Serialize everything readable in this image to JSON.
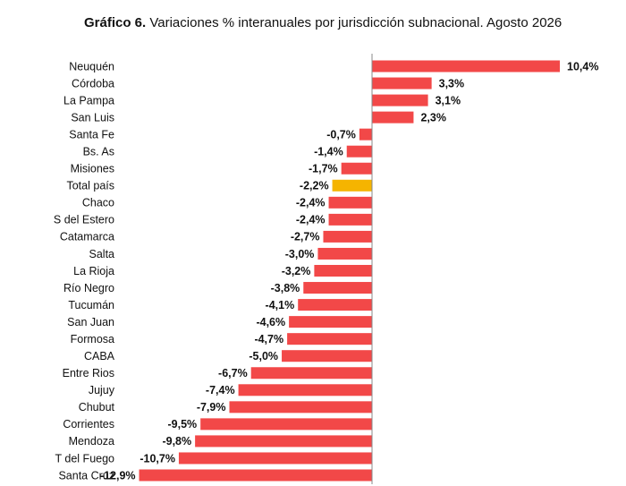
{
  "chart_data": {
    "type": "hbar",
    "title_lead": "Gráfico 6.",
    "title": "Variaciones % interanuales por jurisdicción subnacional. Agosto 2026",
    "categories": [
      "Neuquén",
      "Córdoba",
      "La Pampa",
      "San Luis",
      "Santa Fe",
      "Bs. As",
      "Misiones",
      "Total país",
      "Chaco",
      "S del Estero",
      "Catamarca",
      "Salta",
      "La Rioja",
      "Río Negro",
      "Tucumán",
      "San Juan",
      "Formosa",
      "CABA",
      "Entre Rios",
      "Jujuy",
      "Chubut",
      "Corrientes",
      "Mendoza",
      "T del Fuego",
      "Santa Cruz"
    ],
    "values": [
      10.4,
      3.3,
      3.1,
      2.3,
      -0.7,
      -1.4,
      -1.7,
      -2.2,
      -2.4,
      -2.4,
      -2.7,
      -3.0,
      -3.2,
      -3.8,
      -4.1,
      -4.6,
      -4.7,
      -5.0,
      -6.7,
      -7.4,
      -7.9,
      -9.5,
      -9.8,
      -10.7,
      -12.9
    ],
    "value_labels": [
      "10,4%",
      "3,3%",
      "3,1%",
      "2,3%",
      "-0,7%",
      "-1,4%",
      "-1,7%",
      "-2,2%",
      "-2,4%",
      "-2,4%",
      "-2,7%",
      "-3,0%",
      "-3,2%",
      "-3,8%",
      "-4,1%",
      "-4,6%",
      "-4,7%",
      "-5,0%",
      "-6,7%",
      "-7,4%",
      "-7,9%",
      "-9,5%",
      "-9,8%",
      "-10,7%",
      "-12,9%"
    ],
    "colors": [
      "#f24848",
      "#f24848",
      "#f24848",
      "#f24848",
      "#f24848",
      "#f24848",
      "#f24848",
      "#f5b400",
      "#f24848",
      "#f24848",
      "#f24848",
      "#f24848",
      "#f24848",
      "#f24848",
      "#f24848",
      "#f24848",
      "#f24848",
      "#f24848",
      "#f24848",
      "#f24848",
      "#f24848",
      "#f24848",
      "#f24848",
      "#f24848",
      "#f24848"
    ]
  }
}
